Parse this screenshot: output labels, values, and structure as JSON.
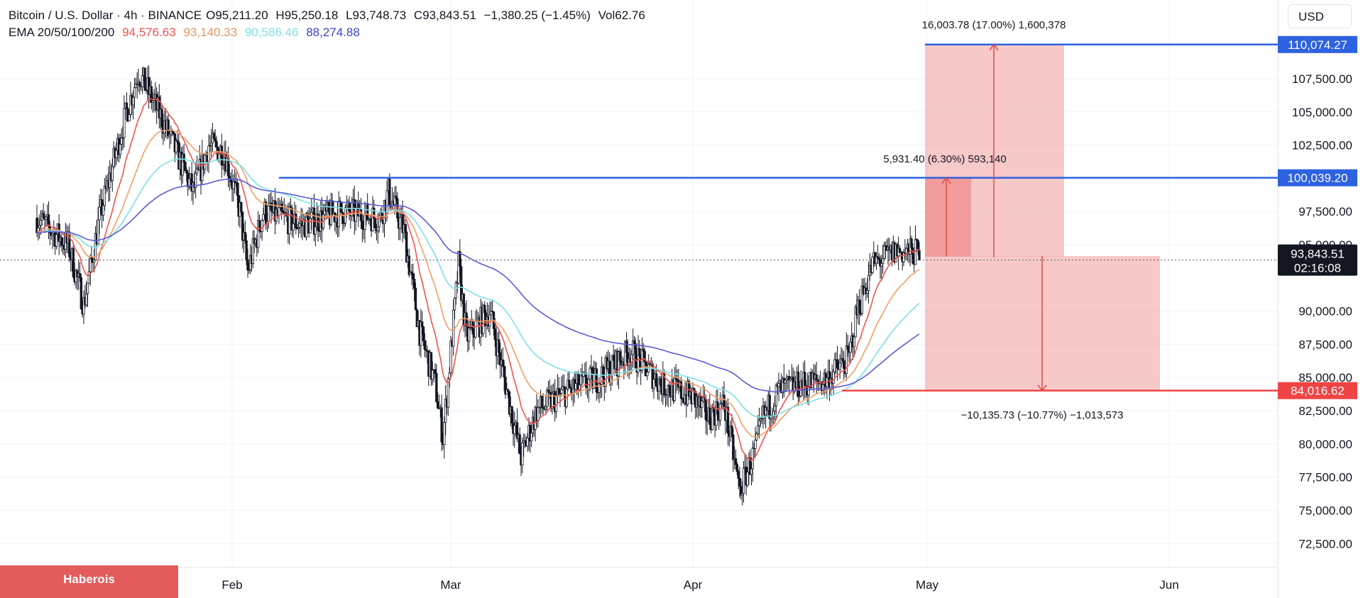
{
  "legend": {
    "symbol": "Bitcoin / U.S. Dollar · 4h · BINANCE",
    "open_label": "O",
    "open": "95,211.20",
    "high_label": "H",
    "high": "95,250.18",
    "low_label": "L",
    "low": "93,748.73",
    "close_label": "C",
    "close": "93,843.51",
    "change": "−1,380.25 (−1.45%)",
    "vol_label": "Vol",
    "vol": "62.76",
    "ema_label": "EMA 20/50/100/200",
    "ema20": "94,576.63",
    "ema50": "93,140.33",
    "ema100": "90,586.46",
    "ema200": "88,274.88"
  },
  "currency": "USD",
  "watermark": "Haberois",
  "colors": {
    "candle": "#131722",
    "ema20": "#f05350",
    "ema50": "#f0a068",
    "ema100": "#7fe0e6",
    "ema200": "#5b5bd6",
    "resistance_line": "#2d62e0",
    "stop_line": "#ef4444",
    "zone": "#f2a5a5",
    "zone_dark": "#ee8080",
    "arrow": "#e04848",
    "axis_text": "#131722"
  },
  "chart_data": {
    "type": "candlestick",
    "y_axis": {
      "min": 71500,
      "max": 113000,
      "ticks": [
        "72,500.00",
        "75,000.00",
        "77,500.00",
        "80,000.00",
        "82,500.00",
        "85,000.00",
        "87,500.00",
        "90,000.00",
        "95,000.00",
        "97,500.00",
        "102,500.00",
        "105,000.00",
        "107,500.00"
      ],
      "tick_values": [
        72500,
        75000,
        77500,
        80000,
        82500,
        85000,
        87500,
        90000,
        95000,
        97500,
        102500,
        105000,
        107500
      ]
    },
    "x_axis": {
      "labels": [
        "Feb",
        "Mar",
        "Apr",
        "May",
        "Jun"
      ],
      "label_dates": [
        "2025-02-01",
        "2025-03-01",
        "2025-04-01",
        "2025-05-01",
        "2025-06-01"
      ],
      "range": [
        "2025-01-07",
        "2025-06-08"
      ]
    },
    "price_series_anchors": {
      "dates": [
        "2025-01-07",
        "2025-01-11",
        "2025-01-13",
        "2025-01-15",
        "2025-01-18",
        "2025-01-20",
        "2025-01-23",
        "2025-01-27",
        "2025-01-29",
        "2025-01-31",
        "2025-02-02",
        "2025-02-03",
        "2025-02-05",
        "2025-02-10",
        "2025-02-15",
        "2025-02-20",
        "2025-02-21",
        "2025-02-23",
        "2025-02-25",
        "2025-02-27",
        "2025-02-28",
        "2025-03-02",
        "2025-03-03",
        "2025-03-06",
        "2025-03-10",
        "2025-03-12",
        "2025-03-16",
        "2025-03-20",
        "2025-03-24",
        "2025-03-28",
        "2025-04-01",
        "2025-04-03",
        "2025-04-05",
        "2025-04-07",
        "2025-04-09",
        "2025-04-10",
        "2025-04-12",
        "2025-04-15",
        "2025-04-18",
        "2025-04-21",
        "2025-04-22",
        "2025-04-24",
        "2025-04-27",
        "2025-04-30"
      ],
      "values": [
        97000,
        95000,
        90500,
        97000,
        104000,
        108000,
        104500,
        99000,
        102500,
        102000,
        97500,
        93000,
        97500,
        96500,
        97500,
        97000,
        99000,
        96000,
        88500,
        84500,
        80500,
        93500,
        88000,
        90000,
        79000,
        82500,
        84000,
        85000,
        87000,
        84500,
        83500,
        82000,
        83000,
        76500,
        79500,
        82000,
        84000,
        84500,
        84800,
        86500,
        90000,
        93500,
        94500,
        94400
      ]
    },
    "ema_end_values": {
      "ema20": 94576.63,
      "ema50": 93140.33,
      "ema100": 90586.46,
      "ema200": 88274.88
    },
    "current_price": 93843.51,
    "countdown": "02:16:08",
    "levels": [
      {
        "label": "110,074.27",
        "value": 110074.27,
        "color_key": "resistance_line"
      },
      {
        "label": "100,039.20",
        "value": 100039.2,
        "color_key": "resistance_line"
      },
      {
        "label": "84,016.62",
        "value": 84016.62,
        "color_key": "stop_line"
      }
    ],
    "measurements": [
      {
        "text": "16,003.78 (17.00%) 1,600,378",
        "from": 94070.49,
        "to": 110074.27
      },
      {
        "text": "5,931.40 (6.30%) 593,140",
        "from": 94107.8,
        "to": 100039.2
      },
      {
        "text": "−10,135.73 (−10.77%) −1,013,573",
        "from": 94152.35,
        "to": 84016.62
      }
    ]
  }
}
